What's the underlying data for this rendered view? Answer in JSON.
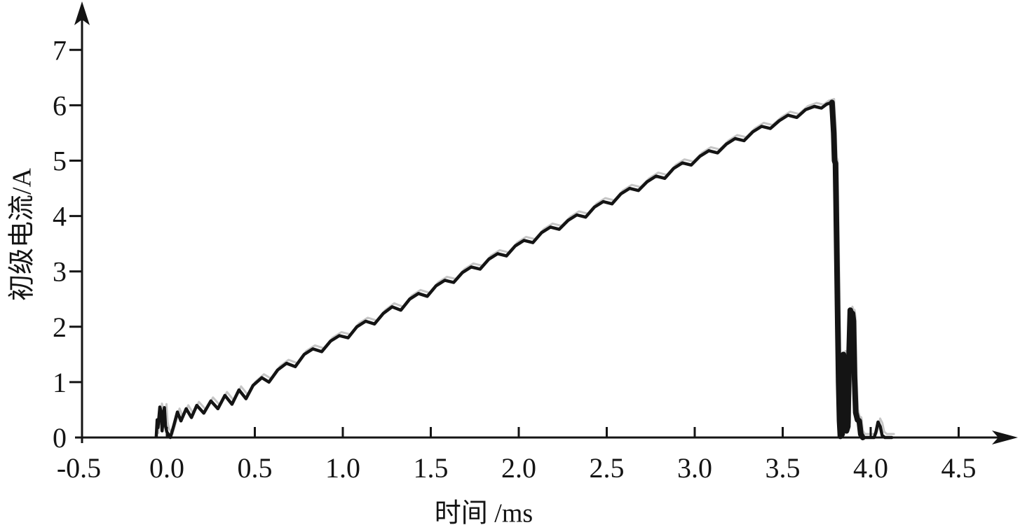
{
  "figure": {
    "background": "#ffffff",
    "ink_color": "#141414",
    "shadow_color": "#a8a8a8"
  },
  "chart_data": {
    "type": "line",
    "title": "",
    "xlabel": "时间 /ms",
    "ylabel": "初级电流/A",
    "xlim": [
      -0.5,
      4.85
    ],
    "ylim": [
      0,
      7.85
    ],
    "grid": false,
    "legend_position": "none",
    "x_ticks": [
      -0.5,
      0.0,
      0.5,
      1.0,
      1.5,
      2.0,
      2.5,
      3.0,
      3.5,
      4.0,
      4.5
    ],
    "x_tick_labels": [
      "-0.5",
      "0.0",
      "0.5",
      "1.0",
      "1.5",
      "2.0",
      "2.5",
      "3.0",
      "3.5",
      "4.0",
      "4.5"
    ],
    "y_ticks": [
      0,
      1,
      2,
      3,
      4,
      5,
      6,
      7
    ],
    "y_tick_labels": [
      "0",
      "1",
      "2",
      "3",
      "4",
      "5",
      "6",
      "7"
    ],
    "annotations": {
      "peak": {
        "t_ms": 3.78,
        "current_A": 6.05
      },
      "collapse_at_ms": 3.8,
      "after_spike": {
        "t_ms": 3.89,
        "current_A": 2.3
      }
    },
    "series": [
      {
        "name": "primary-current-trace",
        "color": "#141414",
        "points": [
          [
            -0.06,
            0.02
          ],
          [
            -0.055,
            0.32
          ],
          [
            -0.05,
            0.18
          ],
          [
            -0.04,
            0.55
          ],
          [
            -0.032,
            0.46
          ],
          [
            -0.027,
            0.12
          ],
          [
            -0.02,
            0.38
          ],
          [
            -0.014,
            0.54
          ],
          [
            -0.008,
            0.22
          ],
          [
            0.0,
            0.1
          ],
          [
            0.02,
            0.0
          ],
          [
            0.04,
            0.22
          ],
          [
            0.06,
            0.46
          ],
          [
            0.08,
            0.3
          ],
          [
            0.11,
            0.52
          ],
          [
            0.14,
            0.36
          ],
          [
            0.17,
            0.58
          ],
          [
            0.21,
            0.44
          ],
          [
            0.25,
            0.66
          ],
          [
            0.29,
            0.52
          ],
          [
            0.33,
            0.76
          ],
          [
            0.37,
            0.6
          ],
          [
            0.41,
            0.86
          ],
          [
            0.45,
            0.7
          ],
          [
            0.49,
            0.94
          ],
          [
            0.54,
            1.08
          ],
          [
            0.58,
            1.0
          ],
          [
            0.63,
            1.22
          ],
          [
            0.68,
            1.34
          ],
          [
            0.73,
            1.28
          ],
          [
            0.78,
            1.5
          ],
          [
            0.83,
            1.6
          ],
          [
            0.88,
            1.55
          ],
          [
            0.93,
            1.74
          ],
          [
            0.98,
            1.84
          ],
          [
            1.03,
            1.8
          ],
          [
            1.08,
            2.0
          ],
          [
            1.13,
            2.1
          ],
          [
            1.18,
            2.05
          ],
          [
            1.23,
            2.24
          ],
          [
            1.28,
            2.36
          ],
          [
            1.33,
            2.3
          ],
          [
            1.38,
            2.5
          ],
          [
            1.43,
            2.6
          ],
          [
            1.48,
            2.55
          ],
          [
            1.53,
            2.74
          ],
          [
            1.58,
            2.84
          ],
          [
            1.63,
            2.8
          ],
          [
            1.68,
            2.98
          ],
          [
            1.73,
            3.08
          ],
          [
            1.78,
            3.04
          ],
          [
            1.83,
            3.22
          ],
          [
            1.88,
            3.32
          ],
          [
            1.93,
            3.28
          ],
          [
            1.98,
            3.46
          ],
          [
            2.03,
            3.56
          ],
          [
            2.08,
            3.52
          ],
          [
            2.13,
            3.7
          ],
          [
            2.18,
            3.8
          ],
          [
            2.23,
            3.76
          ],
          [
            2.28,
            3.92
          ],
          [
            2.33,
            4.02
          ],
          [
            2.38,
            3.98
          ],
          [
            2.43,
            4.16
          ],
          [
            2.48,
            4.26
          ],
          [
            2.53,
            4.22
          ],
          [
            2.58,
            4.4
          ],
          [
            2.63,
            4.5
          ],
          [
            2.68,
            4.46
          ],
          [
            2.73,
            4.62
          ],
          [
            2.78,
            4.72
          ],
          [
            2.83,
            4.68
          ],
          [
            2.88,
            4.86
          ],
          [
            2.93,
            4.96
          ],
          [
            2.98,
            4.92
          ],
          [
            3.03,
            5.08
          ],
          [
            3.08,
            5.18
          ],
          [
            3.13,
            5.14
          ],
          [
            3.18,
            5.3
          ],
          [
            3.23,
            5.4
          ],
          [
            3.28,
            5.36
          ],
          [
            3.33,
            5.52
          ],
          [
            3.38,
            5.62
          ],
          [
            3.43,
            5.58
          ],
          [
            3.48,
            5.72
          ],
          [
            3.53,
            5.82
          ],
          [
            3.58,
            5.78
          ],
          [
            3.63,
            5.92
          ],
          [
            3.68,
            5.98
          ],
          [
            3.72,
            5.95
          ],
          [
            3.75,
            6.02
          ],
          [
            3.78,
            6.05
          ],
          [
            3.79,
            5.5
          ],
          [
            3.795,
            5.0
          ],
          [
            3.8,
            4.95
          ],
          [
            3.803,
            4.3
          ],
          [
            3.808,
            3.2
          ],
          [
            3.813,
            2.0
          ],
          [
            3.818,
            1.0
          ],
          [
            3.823,
            0.3
          ],
          [
            3.828,
            0.02
          ],
          [
            3.838,
            0.06
          ],
          [
            3.845,
            1.5
          ],
          [
            3.85,
            1.38
          ],
          [
            3.856,
            0.85
          ],
          [
            3.862,
            0.12
          ],
          [
            3.87,
            0.2
          ],
          [
            3.878,
            1.6
          ],
          [
            3.884,
            2.3
          ],
          [
            3.888,
            2.26
          ],
          [
            3.892,
            1.45
          ],
          [
            3.897,
            2.24
          ],
          [
            3.902,
            2.1
          ],
          [
            3.908,
            1.1
          ],
          [
            3.915,
            0.45
          ],
          [
            3.925,
            0.32
          ],
          [
            3.935,
            0.3
          ],
          [
            3.944,
            0.06
          ],
          [
            3.955,
            0.0
          ],
          [
            4.02,
            0.0
          ],
          [
            4.03,
            0.1
          ],
          [
            4.042,
            0.28
          ],
          [
            4.054,
            0.2
          ],
          [
            4.065,
            0.04
          ],
          [
            4.08,
            0.0
          ],
          [
            4.12,
            0.0
          ]
        ]
      }
    ]
  }
}
